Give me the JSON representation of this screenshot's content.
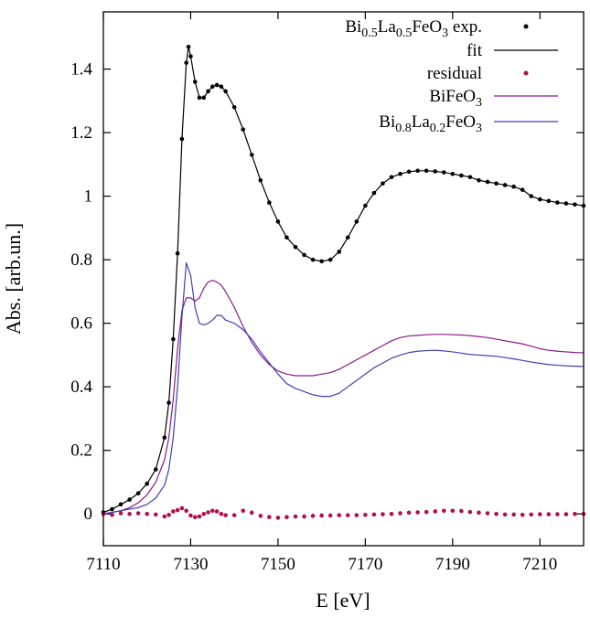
{
  "chart_data": {
    "type": "line",
    "xlabel": "E [eV]",
    "ylabel": "Abs. [arb.un.]",
    "xlim": [
      7110,
      7220
    ],
    "ylim": [
      -0.1,
      1.58
    ],
    "x_ticks": [
      7110,
      7130,
      7150,
      7170,
      7190,
      7210
    ],
    "y_ticks": [
      0,
      0.2,
      0.4,
      0.6,
      0.8,
      1,
      1.2,
      1.4
    ],
    "y_tick_labels": [
      "0",
      "0.2",
      "0.4",
      "0.6",
      "0.8",
      "1",
      "1.2",
      "1.4"
    ],
    "grid": false,
    "legend_position": "top-right",
    "series": [
      {
        "name": "Bi0.5La0.5FeO3 exp.",
        "legend_parts": [
          [
            "Bi",
            ""
          ],
          [
            "0.5",
            "sub"
          ],
          [
            "La",
            ""
          ],
          [
            "0.5",
            "sub"
          ],
          [
            "FeO",
            ""
          ],
          [
            "3",
            "sub"
          ],
          [
            " exp.",
            ""
          ]
        ],
        "style": "points",
        "color": "#000000",
        "x": [
          7110,
          7112,
          7114,
          7116,
          7118,
          7120,
          7122,
          7124,
          7125,
          7126,
          7127,
          7128,
          7129,
          7129.5,
          7130,
          7131,
          7132,
          7133,
          7134,
          7135,
          7136,
          7137,
          7138,
          7140,
          7142,
          7144,
          7146,
          7148,
          7150,
          7152,
          7154,
          7156,
          7158,
          7160,
          7162,
          7164,
          7166,
          7168,
          7170,
          7172,
          7174,
          7176,
          7178,
          7180,
          7182,
          7184,
          7186,
          7188,
          7190,
          7192,
          7194,
          7196,
          7198,
          7200,
          7202,
          7204,
          7206,
          7208,
          7210,
          7212,
          7214,
          7216,
          7218,
          7220
        ],
        "y": [
          0.005,
          0.015,
          0.03,
          0.045,
          0.065,
          0.095,
          0.14,
          0.24,
          0.35,
          0.55,
          0.82,
          1.18,
          1.42,
          1.47,
          1.44,
          1.36,
          1.31,
          1.31,
          1.33,
          1.345,
          1.35,
          1.345,
          1.33,
          1.28,
          1.21,
          1.13,
          1.05,
          0.98,
          0.92,
          0.87,
          0.84,
          0.815,
          0.8,
          0.795,
          0.8,
          0.825,
          0.87,
          0.92,
          0.97,
          1.01,
          1.04,
          1.06,
          1.07,
          1.077,
          1.08,
          1.08,
          1.078,
          1.075,
          1.07,
          1.065,
          1.06,
          1.05,
          1.045,
          1.04,
          1.035,
          1.03,
          1.02,
          1.0,
          0.99,
          0.985,
          0.98,
          0.977,
          0.974,
          0.97
        ]
      },
      {
        "name": "fit",
        "legend_parts": [
          [
            "fit",
            ""
          ]
        ],
        "style": "line",
        "color": "#000000",
        "x": [
          7110,
          7112,
          7114,
          7116,
          7118,
          7120,
          7122,
          7124,
          7125,
          7126,
          7127,
          7128,
          7129,
          7129.5,
          7130,
          7131,
          7132,
          7133,
          7134,
          7135,
          7136,
          7137,
          7138,
          7140,
          7142,
          7144,
          7146,
          7148,
          7150,
          7152,
          7154,
          7156,
          7158,
          7160,
          7162,
          7164,
          7166,
          7168,
          7170,
          7172,
          7174,
          7176,
          7178,
          7180,
          7182,
          7184,
          7186,
          7188,
          7190,
          7192,
          7194,
          7196,
          7198,
          7200,
          7202,
          7204,
          7206,
          7208,
          7210,
          7212,
          7214,
          7216,
          7218,
          7220
        ],
        "y": [
          0.005,
          0.015,
          0.03,
          0.045,
          0.065,
          0.095,
          0.14,
          0.24,
          0.35,
          0.55,
          0.82,
          1.18,
          1.42,
          1.47,
          1.44,
          1.36,
          1.31,
          1.31,
          1.33,
          1.345,
          1.35,
          1.345,
          1.33,
          1.28,
          1.21,
          1.13,
          1.05,
          0.98,
          0.92,
          0.87,
          0.84,
          0.815,
          0.8,
          0.795,
          0.8,
          0.825,
          0.87,
          0.92,
          0.97,
          1.01,
          1.04,
          1.06,
          1.07,
          1.077,
          1.08,
          1.08,
          1.078,
          1.075,
          1.07,
          1.065,
          1.06,
          1.05,
          1.045,
          1.04,
          1.035,
          1.03,
          1.02,
          1.0,
          0.99,
          0.985,
          0.98,
          0.977,
          0.974,
          0.97
        ]
      },
      {
        "name": "residual",
        "legend_parts": [
          [
            "residual",
            ""
          ]
        ],
        "style": "points",
        "color": "#b0104f",
        "x": [
          7110,
          7112,
          7114,
          7116,
          7118,
          7120,
          7122,
          7124,
          7125,
          7126,
          7127,
          7128,
          7129,
          7130,
          7131,
          7132,
          7133,
          7134,
          7135,
          7136,
          7137,
          7138,
          7140,
          7142,
          7144,
          7146,
          7148,
          7150,
          7152,
          7154,
          7156,
          7158,
          7160,
          7162,
          7164,
          7166,
          7168,
          7170,
          7172,
          7174,
          7176,
          7178,
          7180,
          7182,
          7184,
          7186,
          7188,
          7190,
          7192,
          7194,
          7196,
          7198,
          7200,
          7202,
          7204,
          7206,
          7208,
          7210,
          7212,
          7214,
          7216,
          7218,
          7220
        ],
        "y": [
          0.0,
          -0.003,
          0.002,
          0.0,
          0.002,
          0.0,
          -0.002,
          -0.008,
          -0.003,
          0.008,
          0.012,
          0.018,
          0.01,
          -0.005,
          -0.01,
          -0.008,
          0.0,
          0.005,
          0.01,
          0.008,
          0.0,
          -0.004,
          -0.004,
          0.01,
          0.004,
          -0.006,
          -0.01,
          -0.012,
          -0.01,
          -0.008,
          -0.008,
          -0.006,
          -0.005,
          -0.005,
          -0.004,
          -0.004,
          -0.004,
          -0.003,
          -0.002,
          -0.001,
          0.0,
          0.002,
          0.004,
          0.005,
          0.006,
          0.008,
          0.01,
          0.01,
          0.009,
          0.006,
          0.004,
          0.002,
          0.0,
          -0.002,
          -0.002,
          -0.003,
          -0.002,
          -0.001,
          -0.001,
          -0.001,
          -0.001,
          0.0,
          0.0
        ]
      },
      {
        "name": "BiFeO3",
        "legend_parts": [
          [
            "BiFeO",
            ""
          ],
          [
            "3",
            "sub"
          ]
        ],
        "style": "line",
        "color": "#8b1a8b",
        "x": [
          7110,
          7112,
          7114,
          7116,
          7118,
          7120,
          7122,
          7124,
          7125,
          7126,
          7127,
          7128,
          7129,
          7130,
          7131,
          7132,
          7133,
          7134,
          7135,
          7136,
          7137,
          7138,
          7140,
          7142,
          7144,
          7146,
          7148,
          7150,
          7152,
          7154,
          7156,
          7158,
          7160,
          7162,
          7164,
          7166,
          7168,
          7170,
          7172,
          7174,
          7176,
          7178,
          7180,
          7182,
          7184,
          7186,
          7188,
          7190,
          7192,
          7194,
          7196,
          7198,
          7200,
          7202,
          7204,
          7206,
          7208,
          7210,
          7212,
          7214,
          7216,
          7218,
          7220
        ],
        "y": [
          0.0,
          0.005,
          0.01,
          0.02,
          0.035,
          0.06,
          0.1,
          0.17,
          0.24,
          0.36,
          0.52,
          0.64,
          0.68,
          0.68,
          0.67,
          0.68,
          0.71,
          0.73,
          0.735,
          0.73,
          0.72,
          0.7,
          0.65,
          0.59,
          0.54,
          0.5,
          0.47,
          0.45,
          0.44,
          0.435,
          0.435,
          0.435,
          0.44,
          0.445,
          0.455,
          0.47,
          0.485,
          0.5,
          0.515,
          0.53,
          0.545,
          0.555,
          0.56,
          0.562,
          0.564,
          0.565,
          0.565,
          0.564,
          0.563,
          0.561,
          0.558,
          0.555,
          0.55,
          0.545,
          0.54,
          0.535,
          0.528,
          0.52,
          0.515,
          0.512,
          0.51,
          0.508,
          0.507
        ]
      },
      {
        "name": "Bi0.8La0.2FeO3",
        "legend_parts": [
          [
            "Bi",
            ""
          ],
          [
            "0.8",
            "sub"
          ],
          [
            "La",
            ""
          ],
          [
            "0.2",
            "sub"
          ],
          [
            "FeO",
            ""
          ],
          [
            "3",
            "sub"
          ]
        ],
        "style": "line",
        "color": "#3f3fb5",
        "x": [
          7110,
          7112,
          7114,
          7116,
          7118,
          7120,
          7122,
          7124,
          7125,
          7126,
          7127,
          7128,
          7129,
          7130,
          7131,
          7132,
          7133,
          7134,
          7135,
          7136,
          7137,
          7138,
          7140,
          7142,
          7144,
          7146,
          7148,
          7150,
          7152,
          7154,
          7156,
          7158,
          7160,
          7162,
          7164,
          7166,
          7168,
          7170,
          7172,
          7174,
          7176,
          7178,
          7180,
          7182,
          7184,
          7186,
          7188,
          7190,
          7192,
          7194,
          7196,
          7198,
          7200,
          7202,
          7204,
          7206,
          7208,
          7210,
          7212,
          7214,
          7216,
          7218,
          7220
        ],
        "y": [
          0.0,
          0.005,
          0.01,
          0.015,
          0.02,
          0.03,
          0.05,
          0.09,
          0.14,
          0.24,
          0.4,
          0.62,
          0.79,
          0.75,
          0.65,
          0.6,
          0.595,
          0.6,
          0.61,
          0.625,
          0.625,
          0.61,
          0.6,
          0.58,
          0.55,
          0.51,
          0.475,
          0.44,
          0.41,
          0.395,
          0.385,
          0.375,
          0.37,
          0.37,
          0.38,
          0.4,
          0.42,
          0.44,
          0.46,
          0.475,
          0.49,
          0.5,
          0.508,
          0.512,
          0.514,
          0.515,
          0.513,
          0.51,
          0.506,
          0.502,
          0.5,
          0.498,
          0.496,
          0.492,
          0.488,
          0.483,
          0.478,
          0.474,
          0.47,
          0.468,
          0.466,
          0.465,
          0.464
        ]
      }
    ]
  }
}
